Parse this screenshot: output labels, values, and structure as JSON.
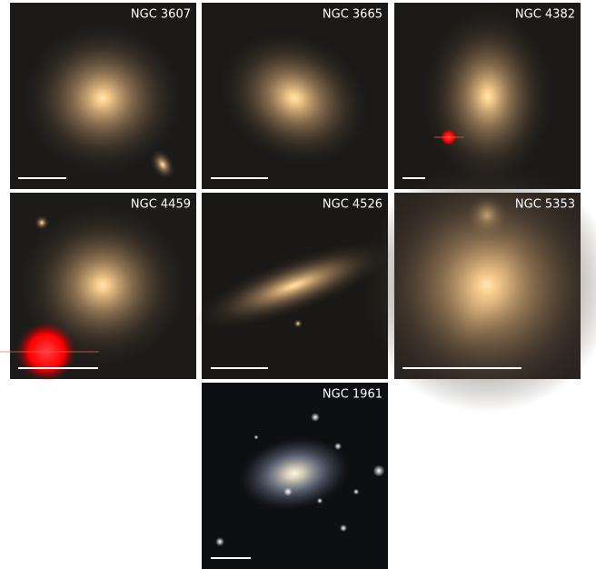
{
  "panels": [
    {
      "label": "NGC 3607"
    },
    {
      "label": "NGC 3665"
    },
    {
      "label": "NGC 4382"
    },
    {
      "label": "NGC 4459"
    },
    {
      "label": "NGC 4526"
    },
    {
      "label": "NGC 5353"
    },
    {
      "label": "NGC 1961"
    }
  ]
}
